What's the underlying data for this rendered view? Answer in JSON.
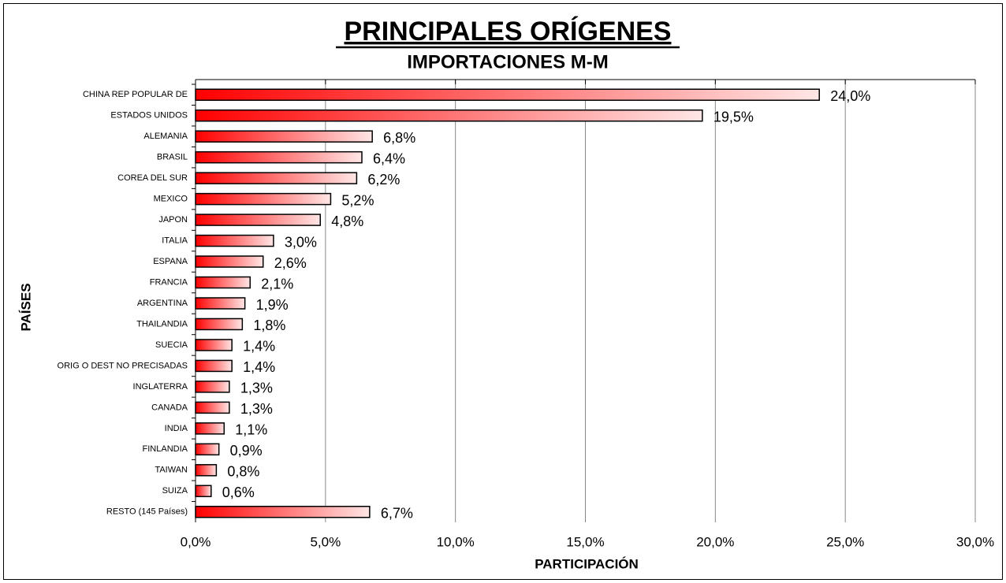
{
  "chart_data": {
    "type": "barh",
    "title": "PRINCIPALES ORÍGENES",
    "subtitle": "IMPORTACIONES M-M",
    "xlabel": "PARTICIPACIÓN",
    "ylabel": "PAÍSES",
    "categories": [
      "CHINA REP POPULAR DE",
      "ESTADOS UNIDOS",
      "ALEMANIA",
      "BRASIL",
      "COREA DEL SUR",
      "MEXICO",
      "JAPON",
      "ITALIA",
      "ESPANA",
      "FRANCIA",
      "ARGENTINA",
      "THAILANDIA",
      "SUECIA",
      "ORIG O DEST NO PRECISADAS",
      "INGLATERRA",
      "CANADA",
      "INDIA",
      "FINLANDIA",
      "TAIWAN",
      "SUIZA",
      "RESTO (145 Países)"
    ],
    "values": [
      24.0,
      19.5,
      6.8,
      6.4,
      6.2,
      5.2,
      4.8,
      3.0,
      2.6,
      2.1,
      1.9,
      1.8,
      1.4,
      1.4,
      1.3,
      1.3,
      1.1,
      0.9,
      0.8,
      0.6,
      6.7
    ],
    "value_labels": [
      "24,0%",
      "19,5%",
      "6,8%",
      "6,4%",
      "6,2%",
      "5,2%",
      "4,8%",
      "3,0%",
      "2,6%",
      "2,1%",
      "1,9%",
      "1,8%",
      "1,4%",
      "1,4%",
      "1,3%",
      "1,3%",
      "1,1%",
      "0,9%",
      "0,8%",
      "0,6%",
      "6,7%"
    ],
    "gradient": [
      "#ff0000",
      "#ffe6e6"
    ],
    "xlim": [
      0,
      30
    ],
    "xticks": [
      {
        "value": 0,
        "label": "0,0%"
      },
      {
        "value": 5,
        "label": "5,0%"
      },
      {
        "value": 10,
        "label": "10,0%"
      },
      {
        "value": 15,
        "label": "15,0%"
      },
      {
        "value": 20,
        "label": "20,0%"
      },
      {
        "value": 25,
        "label": "25,0%"
      },
      {
        "value": 30,
        "label": "30,0%"
      }
    ],
    "grid": true
  }
}
